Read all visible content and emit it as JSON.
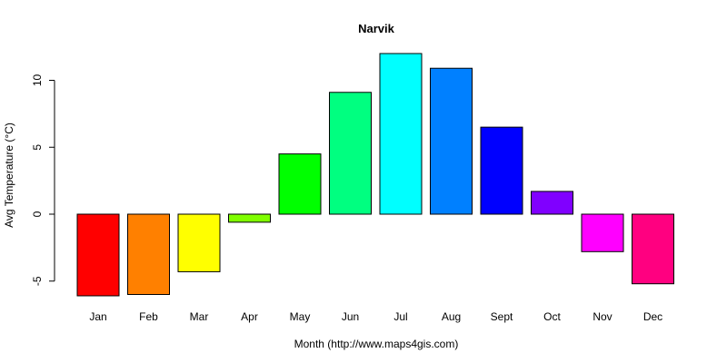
{
  "chart_data": {
    "type": "bar",
    "title": "Narvik",
    "xlabel": "Month (http://www.maps4gis.com)",
    "ylabel": "Avg Temperature (°C)",
    "categories": [
      "Jan",
      "Feb",
      "Mar",
      "Apr",
      "May",
      "Jun",
      "Jul",
      "Aug",
      "Sept",
      "Oct",
      "Nov",
      "Dec"
    ],
    "values": [
      -6.1,
      -6.0,
      -4.3,
      -0.6,
      4.5,
      9.1,
      12.0,
      10.9,
      6.5,
      1.7,
      -2.8,
      -5.2
    ],
    "colors": [
      "#FF0000",
      "#FF8000",
      "#FFFF00",
      "#80FF00",
      "#00FF00",
      "#00FF80",
      "#00FFFF",
      "#0080FF",
      "#0000FF",
      "#8000FF",
      "#FF00FF",
      "#FF0080"
    ],
    "yticks": [
      -5,
      0,
      5,
      10
    ],
    "ylim": [
      -6.1,
      12.0
    ],
    "grid": false,
    "legend": "none"
  }
}
